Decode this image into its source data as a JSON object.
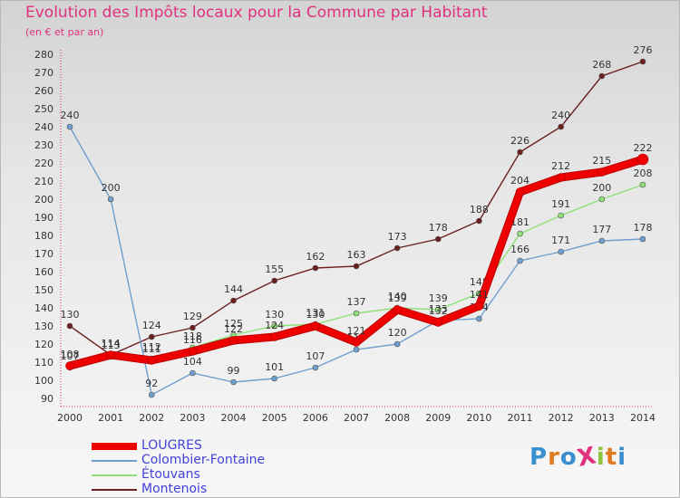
{
  "title": "Evolution des Impôts locaux pour la Commune par Habitant",
  "subtitle": "(en € et par an)",
  "brand": {
    "text": "ProXiti",
    "letters": [
      {
        "ch": "P",
        "color": "#3a8fd0"
      },
      {
        "ch": "r",
        "color": "#e07a1f"
      },
      {
        "ch": "o",
        "color": "#3a8fd0"
      },
      {
        "ch": "X",
        "color": "#e0317f"
      },
      {
        "ch": "i",
        "color": "#8cc63f"
      },
      {
        "ch": "t",
        "color": "#e07a1f"
      },
      {
        "ch": "i",
        "color": "#3a8fd0"
      }
    ]
  },
  "legend": [
    {
      "label": "LOUGRES",
      "color": "#ee0000"
    },
    {
      "label": "Colombier-Fontaine",
      "color": "#6f9fcf"
    },
    {
      "label": "Étouvans",
      "color": "#8fe07a"
    },
    {
      "label": "Montenois",
      "color": "#6b1f1f"
    }
  ],
  "chart_data": {
    "type": "line",
    "title": "Evolution des Impôts locaux pour la Commune par Habitant",
    "subtitle": "(en € et par an)",
    "x": [
      2000,
      2001,
      2002,
      2003,
      2004,
      2005,
      2006,
      2007,
      2008,
      2009,
      2010,
      2011,
      2012,
      2013,
      2014
    ],
    "ylim": [
      90,
      280
    ],
    "yticks": [
      90,
      100,
      110,
      120,
      130,
      140,
      150,
      160,
      170,
      180,
      190,
      200,
      210,
      220,
      230,
      240,
      250,
      260,
      270,
      280
    ],
    "grid": false,
    "legend_position": "bottom-left",
    "series": [
      {
        "name": "Montenois",
        "color": "#6b1f1f",
        "values": [
          130,
          114,
          124,
          129,
          144,
          155,
          162,
          163,
          173,
          178,
          188,
          226,
          240,
          268,
          276
        ]
      },
      {
        "name": "Colombier-Fontaine",
        "color": "#6f9fcf",
        "values": [
          240,
          200,
          92,
          104,
          99,
          101,
          107,
          117,
          120,
          133,
          134,
          166,
          171,
          177,
          178
        ]
      },
      {
        "name": "Étouvans",
        "color": "#8fe07a",
        "values": [
          107,
          113,
          112,
          118,
          125,
          130,
          131,
          137,
          140,
          139,
          148,
          181,
          191,
          200,
          208
        ]
      },
      {
        "name": "LOUGRES",
        "color": "#ee0000",
        "values": [
          108,
          114,
          111,
          116,
          122,
          124,
          130,
          121,
          139,
          132,
          141,
          204,
          212,
          215,
          222
        ]
      }
    ]
  }
}
